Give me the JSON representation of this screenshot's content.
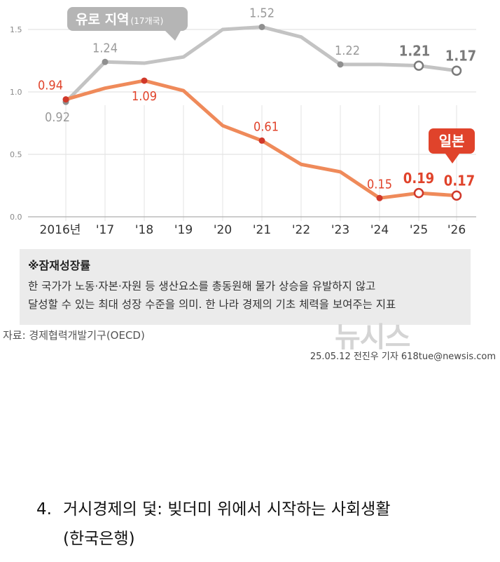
{
  "chart_data": {
    "type": "line",
    "categories": [
      "2016년",
      "'17",
      "'18",
      "'19",
      "'20",
      "'21",
      "'22",
      "'23",
      "'24",
      "'25",
      "'26"
    ],
    "y_ticks": [
      "0.0",
      "0.5",
      "1.0",
      "1.5"
    ],
    "ylim": [
      0,
      1.6
    ],
    "grid": true,
    "series": [
      {
        "name": "유로 지역",
        "name_note": "(17개국)",
        "color": "#c3c3c3",
        "values": [
          0.92,
          1.24,
          1.23,
          1.28,
          1.5,
          1.52,
          1.44,
          1.22,
          1.22,
          1.21,
          1.17
        ],
        "labels": [
          "0.92",
          "1.24",
          "",
          "",
          "",
          "1.52",
          "",
          "1.22",
          "",
          "1.21",
          "1.17"
        ],
        "projected": [
          false,
          false,
          false,
          false,
          false,
          false,
          false,
          false,
          false,
          true,
          true
        ]
      },
      {
        "name": "일본",
        "color": "#ef8a5a",
        "values": [
          0.94,
          1.03,
          1.09,
          1.01,
          0.73,
          0.61,
          0.42,
          0.36,
          0.15,
          0.19,
          0.17
        ],
        "labels": [
          "0.94",
          "",
          "1.09",
          "",
          "",
          "0.61",
          "",
          "",
          "0.15",
          "0.19",
          "0.17"
        ],
        "projected": [
          false,
          false,
          false,
          false,
          false,
          false,
          false,
          false,
          false,
          true,
          true
        ]
      }
    ]
  },
  "definition": {
    "title": "※잠재성장률",
    "lines": [
      "한 국가가 노동·자본·자원 등 생산요소를 총동원해 물가 상승을 유발하지 않고",
      "달성할 수 있는 최대 성장 수준을 의미. 한 나라 경제의 기초 체력을 보여주는 지표"
    ]
  },
  "source": "자료: 경제협력개발기구(OECD)",
  "watermark": "뉴시스",
  "credit": "25.05.12 전진우 기자 618tue@newsis.com",
  "section": {
    "number": "4.",
    "title": "거시경제의 덫: 빚더미 위에서 시작하는 사회생활",
    "source": "(한국은행)"
  },
  "colors": {
    "euro_line": "#c3c3c3",
    "japan_line": "#ef8a5a",
    "japan_label": "#e0432b",
    "euro_callout": "#b5b5b5",
    "japan_callout": "#e0432b",
    "definition_bg": "#ebebeb"
  }
}
